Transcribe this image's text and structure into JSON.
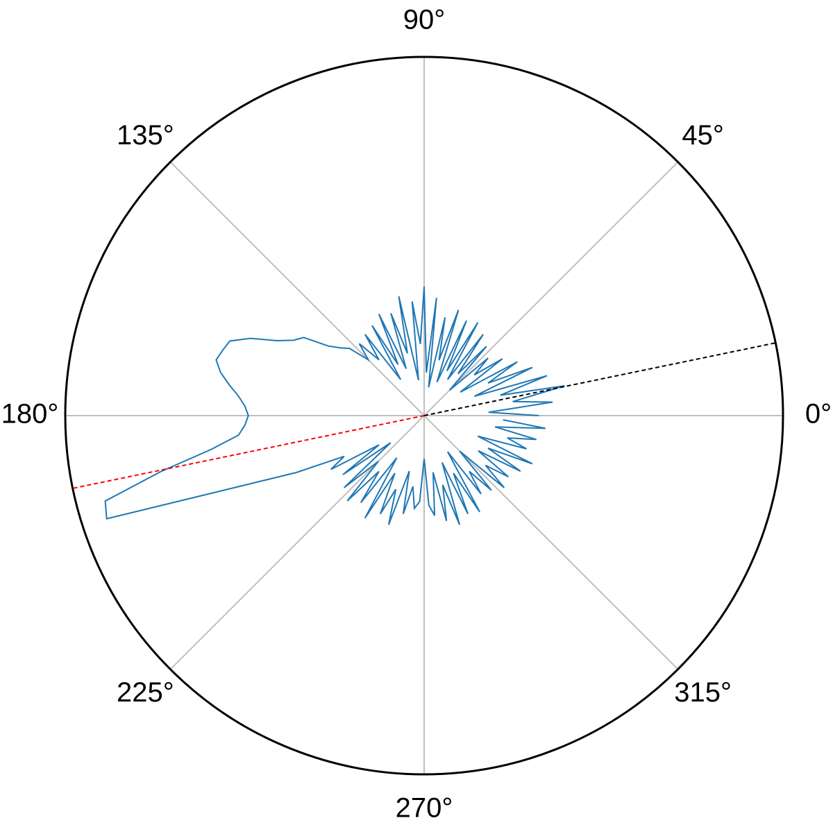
{
  "chart_data": {
    "type": "polar",
    "rlim": [
      0,
      1
    ],
    "thetaticks": [
      {
        "value": 0,
        "label": "0°"
      },
      {
        "value": 45,
        "label": "45°"
      },
      {
        "value": 90,
        "label": "90°"
      },
      {
        "value": 135,
        "label": "135°"
      },
      {
        "value": 180,
        "label": "180°"
      },
      {
        "value": 225,
        "label": "225°"
      },
      {
        "value": 270,
        "label": "270°"
      },
      {
        "value": 315,
        "label": "315°"
      }
    ],
    "grid": true,
    "series": [
      {
        "color": "#1f77b4",
        "theta": [
          0,
          3,
          6,
          9,
          12,
          15,
          18,
          21,
          24,
          27,
          30,
          33,
          36,
          39,
          42,
          45,
          48,
          51,
          54,
          57,
          60,
          63,
          66,
          69,
          72,
          75,
          78,
          81,
          84,
          87,
          90,
          93,
          96,
          99,
          102,
          105,
          108,
          111,
          114,
          117,
          120,
          123,
          126,
          129,
          132,
          135,
          138,
          141,
          144,
          147,
          150,
          153,
          156,
          159,
          162,
          165,
          168,
          171,
          174,
          177,
          180,
          183,
          186,
          189,
          192,
          195,
          198,
          201,
          204,
          207,
          210,
          213,
          216,
          219,
          222,
          225,
          228,
          231,
          234,
          237,
          240,
          243,
          246,
          249,
          252,
          255,
          258,
          261,
          264,
          267,
          270,
          273,
          276,
          279,
          282,
          285,
          288,
          291,
          294,
          297,
          300,
          303,
          306,
          309,
          312,
          315,
          318,
          321,
          324,
          327,
          330,
          333,
          336,
          339,
          342,
          345,
          348,
          351,
          354,
          357
        ],
        "values": [
          0.32,
          0.18,
          0.36,
          0.25,
          0.4,
          0.22,
          0.36,
          0.15,
          0.33,
          0.2,
          0.3,
          0.12,
          0.27,
          0.18,
          0.24,
          0.1,
          0.26,
          0.15,
          0.28,
          0.12,
          0.3,
          0.14,
          0.29,
          0.1,
          0.31,
          0.16,
          0.28,
          0.08,
          0.33,
          0.12,
          0.36,
          0.2,
          0.32,
          0.1,
          0.34,
          0.18,
          0.3,
          0.14,
          0.31,
          0.16,
          0.29,
          0.12,
          0.28,
          0.2,
          0.27,
          0.22,
          0.28,
          0.3,
          0.33,
          0.4,
          0.42,
          0.46,
          0.53,
          0.58,
          0.59,
          0.6,
          0.58,
          0.55,
          0.52,
          0.5,
          0.49,
          0.5,
          0.52,
          0.6,
          0.75,
          0.92,
          0.93,
          0.55,
          0.39,
          0.25,
          0.3,
          0.15,
          0.28,
          0.12,
          0.3,
          0.18,
          0.32,
          0.2,
          0.3,
          0.14,
          0.33,
          0.18,
          0.3,
          0.22,
          0.32,
          0.16,
          0.28,
          0.2,
          0.26,
          0.24,
          0.12,
          0.25,
          0.28,
          0.16,
          0.3,
          0.2,
          0.32,
          0.14,
          0.3,
          0.18,
          0.31,
          0.12,
          0.27,
          0.2,
          0.28,
          0.14,
          0.3,
          0.22,
          0.29,
          0.18,
          0.31,
          0.2,
          0.33,
          0.16,
          0.3,
          0.24,
          0.32,
          0.2,
          0.34,
          0.22
        ]
      }
    ],
    "lines": [
      {
        "angle": 11.7,
        "color": "#000000"
      },
      {
        "angle": 191.7,
        "color": "#ff0000"
      }
    ]
  }
}
